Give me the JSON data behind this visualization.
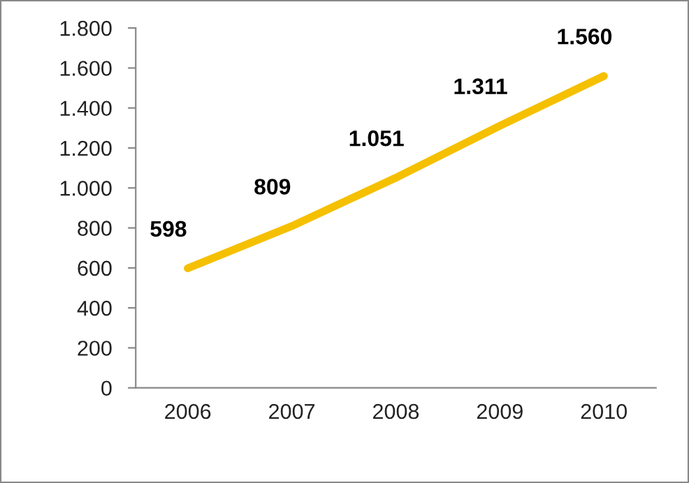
{
  "chart_data": {
    "type": "line",
    "categories": [
      "2006",
      "2007",
      "2008",
      "2009",
      "2010"
    ],
    "values": [
      598,
      809,
      1051,
      1311,
      1560
    ],
    "value_labels": [
      "598",
      "809",
      "1.051",
      "1.311",
      "1.560"
    ],
    "color": "#f5c000",
    "marker": "none",
    "line_style": "solid",
    "grid": false,
    "legend": false,
    "ylim": [
      0,
      1800
    ],
    "yticks": [
      {
        "value": 0,
        "label": "0"
      },
      {
        "value": 200,
        "label": "200"
      },
      {
        "value": 400,
        "label": "400"
      },
      {
        "value": 600,
        "label": "600"
      },
      {
        "value": 800,
        "label": "800"
      },
      {
        "value": 1000,
        "label": "1.000"
      },
      {
        "value": 1200,
        "label": "1.200"
      },
      {
        "value": 1400,
        "label": "1.400"
      },
      {
        "value": 1600,
        "label": "1.600"
      },
      {
        "value": 1800,
        "label": "1.800"
      }
    ]
  }
}
